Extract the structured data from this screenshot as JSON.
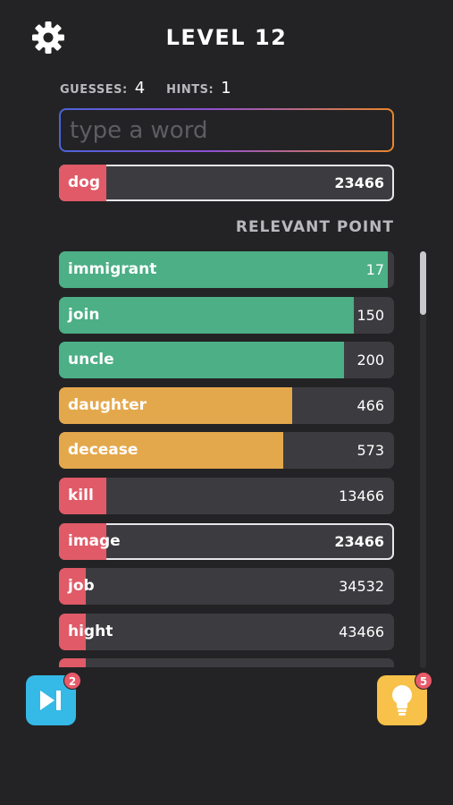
{
  "header": {
    "settings_icon": "gear-icon",
    "title": "LEVEL 12"
  },
  "stats": {
    "guesses_label": "GUESSES:",
    "guesses_value": "4",
    "hints_label": "HINTS:",
    "hints_value": "1"
  },
  "input": {
    "placeholder": "type a word",
    "value": ""
  },
  "current_guess": {
    "word": "dog",
    "score": "23466",
    "fill_fraction": 0.14
  },
  "section": {
    "title": "RELEVANT POINT"
  },
  "colors": {
    "green": "#4caf86",
    "orange": "#e4a84c",
    "red": "#e05a67",
    "bar_bg": "#3c3c40",
    "background": "#232325",
    "skip_button": "#35b9e6",
    "hint_button": "#f7c14a",
    "badge": "#e85a69"
  },
  "guesses": [
    {
      "word": "immigrant",
      "score": "17",
      "color": "#4caf86",
      "fill_fraction": 0.98,
      "highlighted": false
    },
    {
      "word": "join",
      "score": "150",
      "color": "#4caf86",
      "fill_fraction": 0.88,
      "highlighted": false
    },
    {
      "word": "uncle",
      "score": "200",
      "color": "#4caf86",
      "fill_fraction": 0.85,
      "highlighted": false
    },
    {
      "word": "daughter",
      "score": "466",
      "color": "#e4a84c",
      "fill_fraction": 0.695,
      "highlighted": false
    },
    {
      "word": "decease",
      "score": "573",
      "color": "#e4a84c",
      "fill_fraction": 0.67,
      "highlighted": false
    },
    {
      "word": "kill",
      "score": "13466",
      "color": "#e05a67",
      "fill_fraction": 0.14,
      "highlighted": false
    },
    {
      "word": "image",
      "score": "23466",
      "color": "#e05a67",
      "fill_fraction": 0.14,
      "highlighted": true
    },
    {
      "word": "job",
      "score": "34532",
      "color": "#e05a67",
      "fill_fraction": 0.08,
      "highlighted": false
    },
    {
      "word": "hight",
      "score": "43466",
      "color": "#e05a67",
      "fill_fraction": 0.08,
      "highlighted": false
    },
    {
      "word": "",
      "score": "",
      "color": "#e05a67",
      "fill_fraction": 0.08,
      "highlighted": false
    }
  ],
  "buttons": {
    "skip_icon": "skip-forward-icon",
    "skip_badge": "2",
    "hint_icon": "lightbulb-icon",
    "hint_badge": "5"
  }
}
